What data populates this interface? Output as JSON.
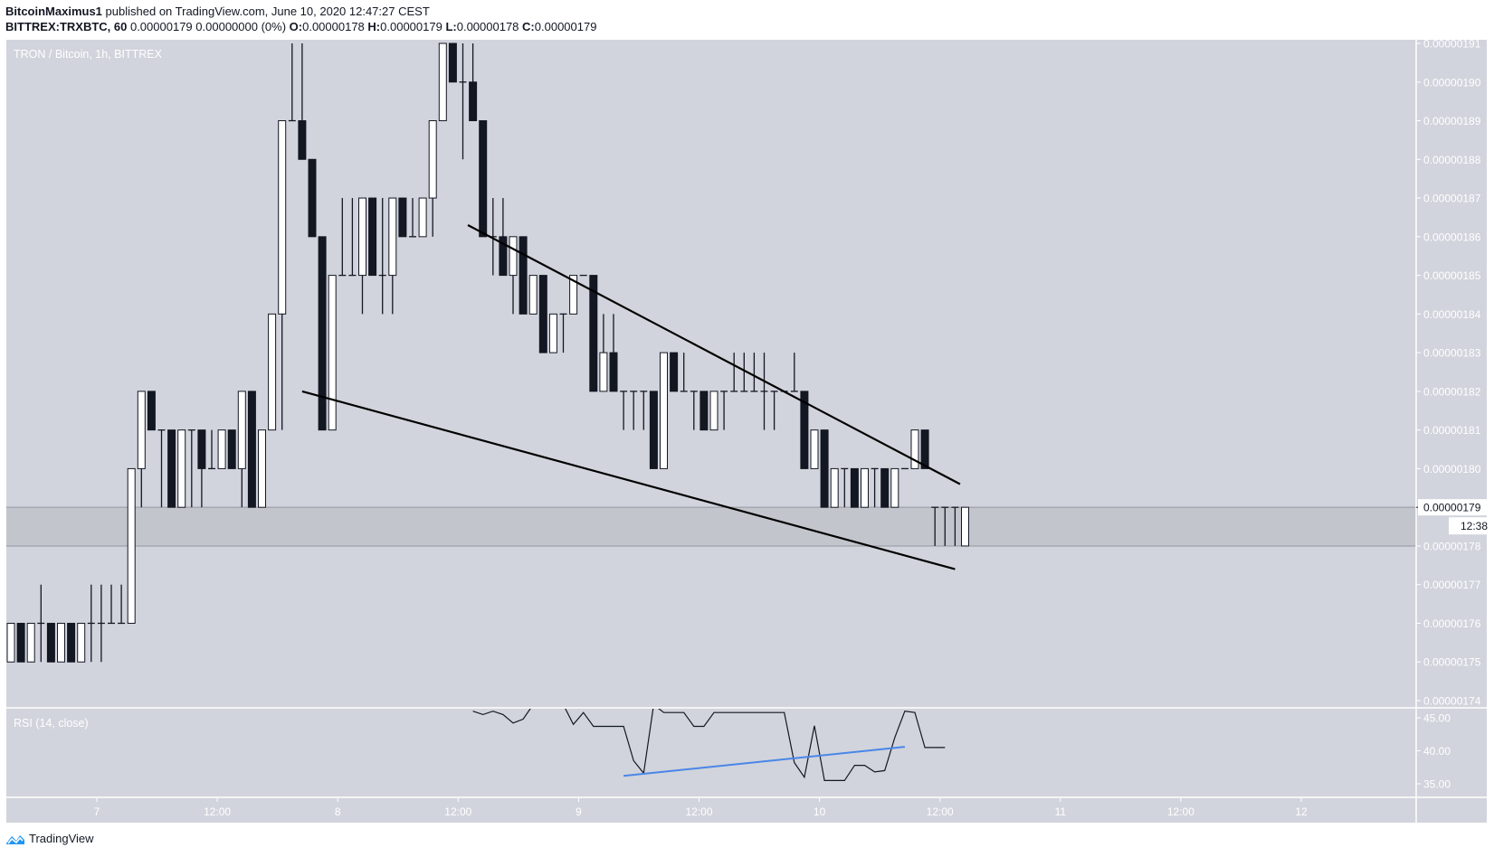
{
  "header": {
    "author": "BitcoinMaximus1",
    "published_text": "published on TradingView.com, June 10, 2020 12:47:27 CEST",
    "symbol": "BITTREX:TRXBTC, 60",
    "last": "0.00000179",
    "change": "0.00000000 (0%)",
    "o_label": "O:",
    "o": "0.00000178",
    "h_label": "H:",
    "h": "0.00000179",
    "l_label": "L:",
    "l": "0.00000178",
    "c_label": "C:",
    "c": "0.00000179"
  },
  "legend": {
    "main": "TRON / Bitcoin, 1h, BITTREX",
    "rsi": "RSI (14, close)"
  },
  "price_axis": {
    "labels": [
      "0.00000191",
      "0.00000190",
      "0.00000189",
      "0.00000188",
      "0.00000187",
      "0.00000186",
      "0.00000185",
      "0.00000184",
      "0.00000183",
      "0.00000182",
      "0.00000181",
      "0.00000180",
      "0.00000179",
      "0.00000178",
      "0.00000177",
      "0.00000176",
      "0.00000175",
      "0.00000174"
    ],
    "current_price": "0.00000179",
    "countdown": "12:38"
  },
  "rsi_axis": {
    "labels": [
      "45.00",
      "40.00",
      "35.00"
    ]
  },
  "time_axis": {
    "labels": [
      "7",
      "12:00",
      "8",
      "12:00",
      "9",
      "12:00",
      "10",
      "12:00",
      "11",
      "12:00",
      "12"
    ]
  },
  "footer": {
    "brand": "TradingView"
  },
  "colors": {
    "background": "#d1d4dc",
    "up_body": "#ffffff",
    "down_body": "#131722",
    "outline": "#131722",
    "support_zone": "#c3c5cc",
    "trendline": "#000000",
    "rsi_line": "#131722",
    "rsi_trendline": "#4a86e8",
    "axis_text": "#ffffff",
    "brand_blue": "#2196f3"
  },
  "chart_data": [
    {
      "type": "candlestick",
      "title": "TRON / Bitcoin, 1h, BITTREX",
      "unit": "1e-8 BTC",
      "x_labels": [
        "7",
        "12:00",
        "8",
        "12:00",
        "9",
        "12:00",
        "10",
        "12:00",
        "11",
        "12:00",
        "12"
      ],
      "ylim": [
        174,
        191
      ],
      "support_zone": [
        178,
        179
      ],
      "trendlines": [
        {
          "name": "upper-wedge",
          "from": {
            "x": 45.5,
            "y": 186.3
          },
          "to": {
            "x": 94.5,
            "y": 179.6
          }
        },
        {
          "name": "lower-wedge",
          "from": {
            "x": 29,
            "y": 182
          },
          "to": {
            "x": 94,
            "y": 177.4
          }
        }
      ],
      "candles": [
        [
          175,
          176,
          175,
          176
        ],
        [
          176,
          176,
          175,
          175
        ],
        [
          175,
          176,
          175,
          176
        ],
        [
          176,
          177,
          175,
          176
        ],
        [
          176,
          176,
          175,
          175
        ],
        [
          175,
          176,
          175,
          176
        ],
        [
          176,
          176,
          175,
          175
        ],
        [
          175,
          176,
          175,
          176
        ],
        [
          176,
          177,
          175,
          176
        ],
        [
          176,
          177,
          175,
          176
        ],
        [
          176,
          177,
          176,
          176
        ],
        [
          176,
          177,
          176,
          176
        ],
        [
          176,
          180,
          176,
          180
        ],
        [
          180,
          182,
          179,
          182
        ],
        [
          182,
          182,
          181,
          181
        ],
        [
          181,
          181,
          179,
          181
        ],
        [
          181,
          181,
          179,
          179
        ],
        [
          179,
          181,
          179,
          181
        ],
        [
          181,
          181,
          179,
          181
        ],
        [
          181,
          181,
          179,
          180
        ],
        [
          180,
          181,
          180,
          180
        ],
        [
          180,
          181,
          180,
          181
        ],
        [
          181,
          181,
          180,
          180
        ],
        [
          180,
          182,
          179,
          182
        ],
        [
          182,
          182,
          179,
          179
        ],
        [
          179,
          181,
          179,
          181
        ],
        [
          181,
          184,
          181,
          184
        ],
        [
          184,
          185,
          181,
          189
        ],
        [
          189,
          191,
          189,
          189
        ],
        [
          189,
          191,
          188,
          188
        ],
        [
          188,
          188,
          186,
          186
        ],
        [
          186,
          186,
          181,
          181
        ],
        [
          181,
          185,
          181,
          185
        ],
        [
          185,
          187,
          185,
          185
        ],
        [
          185,
          187,
          185,
          185
        ],
        [
          185,
          186,
          184,
          187
        ],
        [
          187,
          187,
          185,
          185
        ],
        [
          185,
          187,
          184,
          185
        ],
        [
          185,
          187,
          184,
          187
        ],
        [
          187,
          187,
          186,
          186
        ],
        [
          186,
          187,
          186,
          186
        ],
        [
          186,
          187,
          186,
          187
        ],
        [
          187,
          188,
          186,
          189
        ],
        [
          189,
          191,
          189,
          191
        ],
        [
          191,
          191,
          190,
          190
        ],
        [
          190,
          191,
          188,
          190
        ],
        [
          190,
          191,
          189,
          189
        ],
        [
          189,
          189,
          186,
          186
        ],
        [
          186,
          187,
          185,
          186
        ],
        [
          186,
          187,
          185,
          185
        ],
        [
          185,
          186,
          184,
          186
        ],
        [
          186,
          185,
          184,
          184
        ],
        [
          184,
          185,
          184,
          185
        ],
        [
          185,
          185,
          183,
          183
        ],
        [
          183,
          184,
          183,
          184
        ],
        [
          184,
          184,
          183,
          184
        ],
        [
          184,
          185,
          184,
          185
        ],
        [
          185,
          185,
          185,
          185
        ],
        [
          185,
          185,
          182,
          182
        ],
        [
          182,
          184,
          182,
          183
        ],
        [
          183,
          184,
          182,
          182
        ],
        [
          182,
          182,
          181,
          182
        ],
        [
          182,
          182,
          181,
          182
        ],
        [
          182,
          182,
          181,
          182
        ],
        [
          182,
          182,
          180,
          180
        ],
        [
          180,
          183,
          180,
          183
        ],
        [
          183,
          183,
          182,
          182
        ],
        [
          182,
          183,
          182,
          182
        ],
        [
          182,
          182,
          181,
          182
        ],
        [
          182,
          182,
          181,
          181
        ],
        [
          181,
          182,
          181,
          182
        ],
        [
          182,
          182,
          181,
          182
        ],
        [
          182,
          183,
          182,
          182
        ],
        [
          182,
          183,
          182,
          182
        ],
        [
          182,
          183,
          182,
          182
        ],
        [
          182,
          183,
          181,
          182
        ],
        [
          182,
          182,
          181,
          182
        ],
        [
          182,
          182,
          182,
          182
        ],
        [
          182,
          183,
          182,
          182
        ],
        [
          182,
          182,
          180,
          180
        ],
        [
          180,
          181,
          180,
          181
        ],
        [
          181,
          181,
          179,
          179
        ],
        [
          179,
          180,
          179,
          180
        ],
        [
          180,
          180,
          179,
          180
        ],
        [
          180,
          180,
          179,
          179
        ],
        [
          179,
          180,
          179,
          180
        ],
        [
          180,
          180,
          179,
          180
        ],
        [
          180,
          180,
          179,
          179
        ],
        [
          179,
          180,
          179,
          180
        ],
        [
          180,
          180,
          180,
          180
        ],
        [
          180,
          181,
          180,
          181
        ],
        [
          181,
          181,
          180,
          180
        ],
        [
          179,
          179,
          178,
          179
        ],
        [
          179,
          179,
          178,
          179
        ],
        [
          179,
          179,
          178,
          179
        ],
        [
          178,
          179,
          178,
          179
        ]
      ]
    },
    {
      "type": "line",
      "title": "RSI (14, close)",
      "ylim": [
        33,
        46.5
      ],
      "ticks": [
        45,
        40,
        35
      ],
      "x_index_start": 46,
      "values": [
        46,
        45.5,
        46,
        45.5,
        44.2,
        44.8,
        47,
        48,
        48,
        47,
        44,
        45.8,
        43.7,
        43.7,
        43.7,
        43.7,
        38.5,
        36.6,
        47,
        45.8,
        45.8,
        45.8,
        43.7,
        43.7,
        45.8,
        45.8,
        45.8,
        45.8,
        45.8,
        45.8,
        45.8,
        45.8,
        38.2,
        36,
        43.8,
        35.5,
        35.5,
        35.5,
        37.8,
        37.8,
        36.8,
        37,
        42,
        46,
        45.8,
        40.5,
        40.5,
        40.5
      ],
      "trendline": {
        "from": {
          "x": 61,
          "y": 36.2
        },
        "to": {
          "x": 89,
          "y": 40.6
        },
        "color": "#4a86e8"
      }
    }
  ]
}
